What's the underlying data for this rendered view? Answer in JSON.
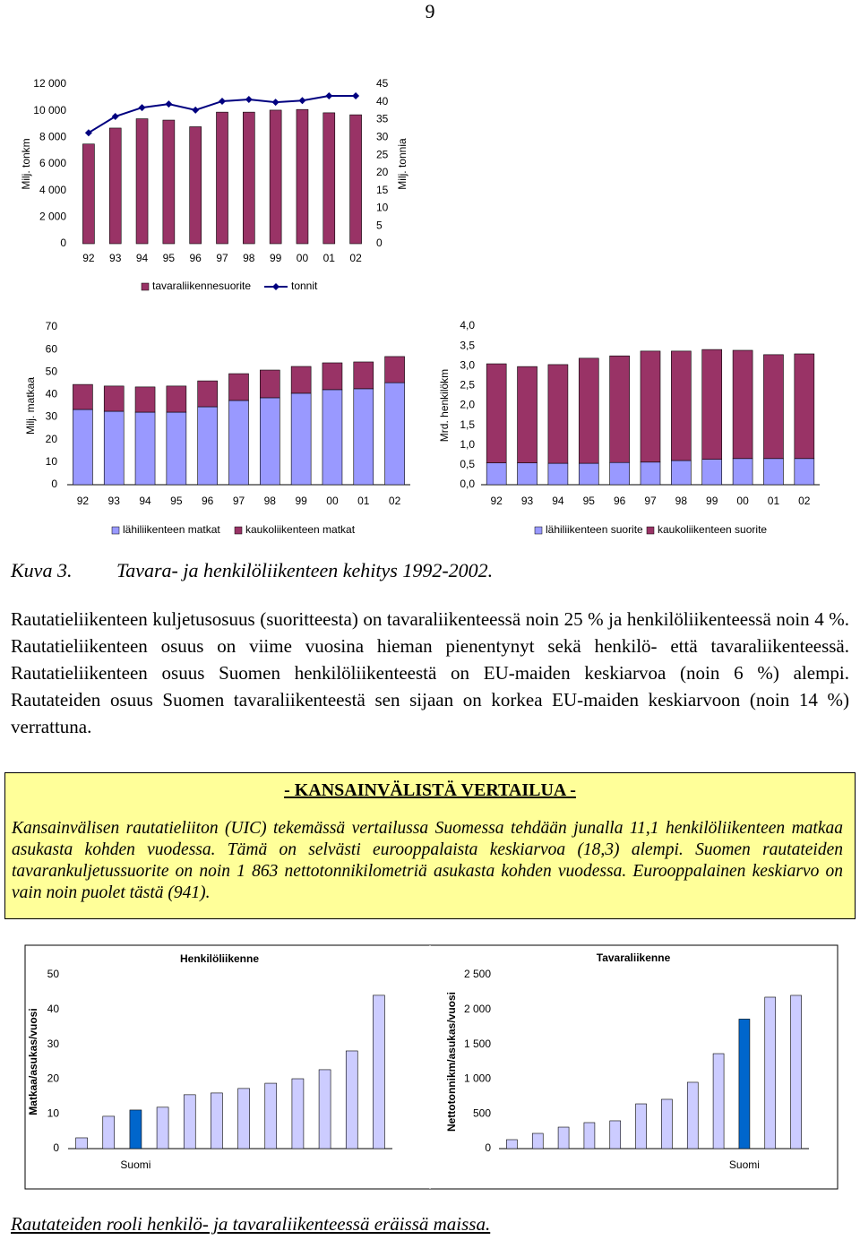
{
  "page_number": "9",
  "chart_data": [
    {
      "type": "combo",
      "categories": [
        "92",
        "93",
        "94",
        "95",
        "96",
        "97",
        "98",
        "99",
        "00",
        "01",
        "02"
      ],
      "ylabel": "Milj. tonkm",
      "y2label": "Milj. tonnia",
      "ylim": [
        0,
        12000
      ],
      "yticks": [
        0,
        {
          "value": 2000,
          "label": "2 000"
        },
        {
          "value": 4000,
          "label": "4 000"
        },
        {
          "value": 6000,
          "label": "6 000"
        },
        {
          "value": 8000,
          "label": "8 000"
        },
        {
          "value": 10000,
          "label": "10 000"
        },
        {
          "value": 12000,
          "label": "12 000"
        }
      ],
      "y2lim": [
        0,
        45
      ],
      "y2ticks": [
        0,
        5,
        10,
        15,
        20,
        25,
        30,
        35,
        40,
        45
      ],
      "series": [
        {
          "name": "tavaraliikennesuorite",
          "type": "bar",
          "color": "#993366",
          "values": [
            7500,
            8700,
            9400,
            9300,
            8800,
            9900,
            9900,
            10050,
            10100,
            9850,
            9700
          ]
        },
        {
          "name": "tonnit",
          "type": "line",
          "axis": "y2",
          "color": "#000080",
          "values": [
            31.3,
            35.9,
            38.4,
            39.4,
            37.7,
            40.2,
            40.7,
            39.9,
            40.4,
            41.7,
            41.7
          ]
        }
      ]
    },
    {
      "type": "stacked",
      "categories": [
        "92",
        "93",
        "94",
        "95",
        "96",
        "97",
        "98",
        "99",
        "00",
        "01",
        "02"
      ],
      "ylabel": "Milj. matkaa",
      "ylim": [
        0,
        70
      ],
      "yticks": [
        0,
        10,
        20,
        30,
        40,
        50,
        60,
        70
      ],
      "series": [
        {
          "name": "lähiliikenteen matkat",
          "color": "#9999ff",
          "values": [
            33.4,
            32.6,
            32.2,
            32.2,
            34.6,
            37.4,
            38.6,
            40.6,
            42.2,
            42.6,
            45.3
          ]
        },
        {
          "name": "kaukoliikenteen matkat",
          "color": "#993366",
          "values": [
            11.1,
            11.2,
            11.2,
            11.6,
            11.5,
            11.9,
            12.3,
            11.9,
            11.9,
            11.9,
            11.6
          ]
        }
      ]
    },
    {
      "type": "stacked",
      "categories": [
        "92",
        "93",
        "94",
        "95",
        "96",
        "97",
        "98",
        "99",
        "00",
        "01",
        "02"
      ],
      "ylabel": "Mrd. henkilökm",
      "ylim": [
        0,
        4
      ],
      "yticks": [
        {
          "value": 0,
          "label": "0,0"
        },
        {
          "value": 0.5,
          "label": "0,5"
        },
        {
          "value": 1,
          "label": "1,0"
        },
        {
          "value": 1.5,
          "label": "1,5"
        },
        {
          "value": 2,
          "label": "2,0"
        },
        {
          "value": 2.5,
          "label": "2,5"
        },
        {
          "value": 3,
          "label": "3,0"
        },
        {
          "value": 3.5,
          "label": "3,5"
        },
        {
          "value": 4,
          "label": "4,0"
        }
      ],
      "series": [
        {
          "name": "lähiliikenteen suorite",
          "color": "#9999ff",
          "values": [
            0.55,
            0.55,
            0.54,
            0.54,
            0.56,
            0.57,
            0.61,
            0.64,
            0.66,
            0.66,
            0.66
          ]
        },
        {
          "name": "kaukoliikenteen suorite",
          "color": "#993366",
          "values": [
            2.5,
            2.43,
            2.49,
            2.65,
            2.69,
            2.8,
            2.76,
            2.77,
            2.73,
            2.62,
            2.64
          ]
        }
      ]
    },
    {
      "type": "bar",
      "title": "Henkilöliikenne",
      "ylabel": "Matkaa/asukas/vuosi",
      "categories": [
        null,
        null,
        "Suomi",
        null,
        null,
        null,
        null,
        null,
        null,
        null,
        null,
        null
      ],
      "values": [
        3.1,
        9.3,
        11.1,
        11.9,
        15.5,
        16.0,
        17.3,
        18.8,
        20.1,
        22.7,
        28.1,
        44.1
      ],
      "colors": [
        "#ccccff",
        "#ccccff",
        "#0066cc",
        "#ccccff",
        "#ccccff",
        "#ccccff",
        "#ccccff",
        "#ccccff",
        "#ccccff",
        "#ccccff",
        "#ccccff",
        "#ccccff"
      ],
      "ylim": [
        0,
        50
      ],
      "yticks": [
        0,
        10,
        20,
        30,
        40,
        50
      ]
    },
    {
      "type": "bar",
      "title": "Tavaraliikenne",
      "ylabel": "Nettotonnikm/asukas/vuosi",
      "categories": [
        null,
        null,
        null,
        null,
        null,
        null,
        null,
        null,
        null,
        "Suomi",
        null,
        null
      ],
      "values": [
        129,
        219,
        309,
        374,
        400,
        644,
        709,
        954,
        1366,
        1863,
        2178,
        2204
      ],
      "colors": [
        "#ccccff",
        "#ccccff",
        "#ccccff",
        "#ccccff",
        "#ccccff",
        "#ccccff",
        "#ccccff",
        "#ccccff",
        "#ccccff",
        "#0066cc",
        "#ccccff",
        "#ccccff"
      ],
      "ylim": [
        0,
        2500
      ],
      "yticks": [
        0,
        500,
        {
          "value": 1000,
          "label": "1 000"
        },
        {
          "value": 1500,
          "label": "1 500"
        },
        {
          "value": 2000,
          "label": "2 000"
        },
        {
          "value": 2500,
          "label": "2 500"
        }
      ]
    }
  ],
  "caption": {
    "number": "Kuva 3.",
    "text": "Tavara- ja henkilöliikenteen kehitys 1992-2002."
  },
  "paragraph": "Rautatieliikenteen kuljetusosuus (suoritteesta) on tavaraliikenteessä noin 25 % ja henkilöliikenteessä noin 4 %. Rautatieliikenteen osuus on viime vuosina hieman pienentynyt sekä henkilö- että tavaraliikenteessä. Rautatieliikenteen osuus Suomen henkilöliikenteestä on EU-maiden keskiarvoa (noin 6 %) alempi. Rautateiden osuus Suomen tavaraliikenteestä sen sijaan on korkea EU-maiden keskiarvoon (noin 14 %) verrattuna.",
  "box": {
    "title": "- KANSAINVÄLISTÄ VERTAILUA -",
    "text": "Kansainvälisen rautatieliiton (UIC) tekemässä vertailussa Suomessa tehdään junalla 11,1 henkilöliikenteen matkaa asukasta kohden vuodessa. Tämä on selvästi eurooppalaista keskiarvoa (18,3) alempi. Suomen rautateiden tavarankuljetussuorite on noin 1 863 nettotonnikilometriä asukasta kohden vuodessa. Eurooppalainen keskiarvo on vain noin puolet tästä (941)."
  },
  "bottom_caption": "Rautateiden rooli henkilö- ja tavaraliikenteessä eräissä maissa."
}
